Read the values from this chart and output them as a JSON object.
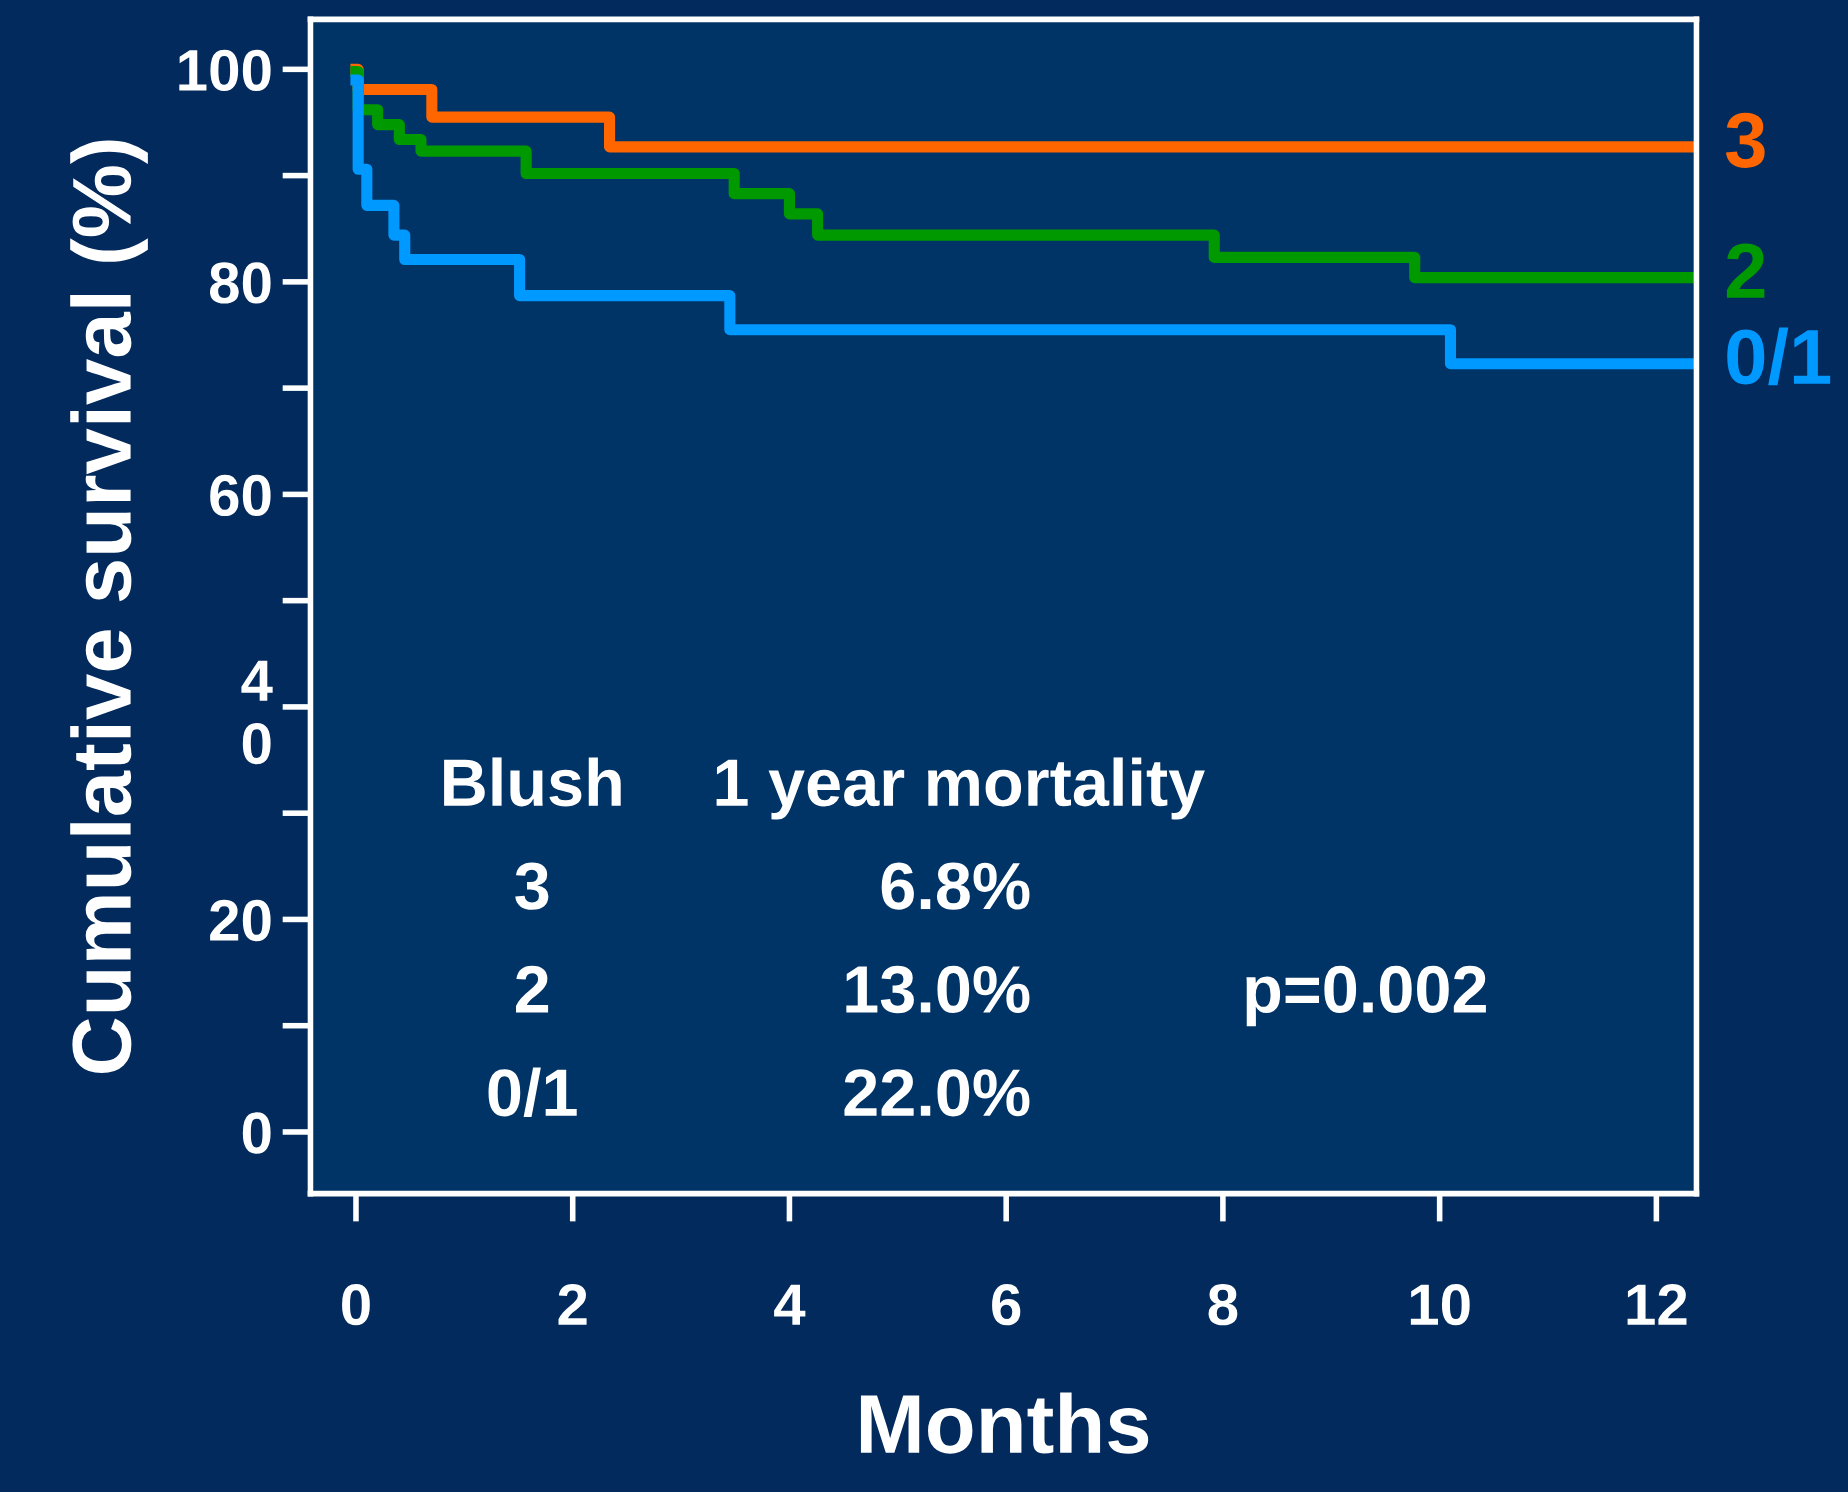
{
  "chart_data": {
    "type": "step",
    "xlabel": "Months",
    "ylabel": "Cumulative survival (%)",
    "xlim": [
      -0.42,
      12.37
    ],
    "ylim": [
      -5.8,
      104.7
    ],
    "xticks": [
      0,
      2,
      4,
      6,
      8,
      10,
      12
    ],
    "yticks": [
      0,
      {
        "value": 10,
        "label": null
      },
      20,
      {
        "value": 30,
        "label": null
      },
      {
        "value": 40,
        "label": "4\n0"
      },
      {
        "value": 50,
        "label": null
      },
      60,
      {
        "value": 70,
        "label": null
      },
      80,
      {
        "value": 90,
        "label": null
      },
      100
    ],
    "grid": false,
    "legend": false,
    "series": [
      {
        "name": "3",
        "color": "#ff6600",
        "x": [
          0,
          0.02,
          0.7,
          2.34,
          12.3
        ],
        "values": [
          100,
          98.1,
          95.5,
          92.7,
          92.7
        ]
      },
      {
        "name": "2",
        "color": "#009900",
        "x": [
          0,
          0.02,
          0.2,
          0.4,
          0.6,
          1.57,
          3.49,
          4.0,
          4.26,
          7.92,
          9.77,
          12.3
        ],
        "values": [
          99.8,
          96.2,
          94.8,
          93.4,
          92.3,
          90.2,
          88.3,
          86.4,
          84.4,
          82.3,
          80.4,
          80.4
        ]
      },
      {
        "name": "0/1",
        "color": "#0099ff",
        "x": [
          0,
          0.02,
          0.1,
          0.35,
          0.45,
          1.51,
          3.45,
          10.1,
          12.3
        ],
        "values": [
          99,
          90.6,
          87.2,
          84.4,
          82.1,
          78.7,
          75.5,
          72.3,
          72.3
        ]
      }
    ],
    "annotations": [
      "Blush",
      "1 year mortality",
      "3",
      "6.8%",
      "2",
      "13.0%",
      "0/1",
      "22.0%",
      "p=0.002"
    ]
  }
}
